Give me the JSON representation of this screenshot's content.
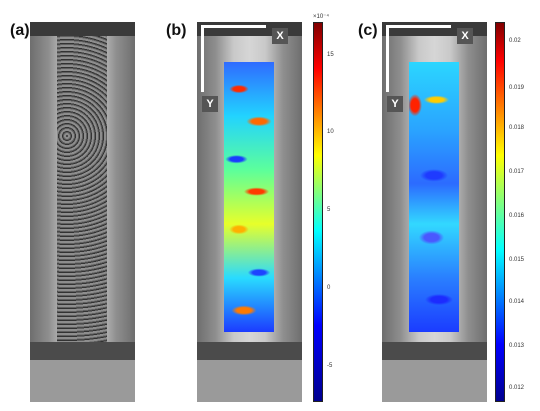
{
  "panels": [
    {
      "label": "(a)"
    },
    {
      "label": "(b)",
      "axis_x": "X",
      "axis_y": "Y"
    },
    {
      "label": "(c)",
      "axis_x": "X",
      "axis_y": "Y"
    }
  ],
  "colorbars": [
    {
      "exponent": "×10⁻⁴",
      "ticks": [
        "15",
        "10",
        "5",
        "0",
        "-5"
      ]
    },
    {
      "ticks": [
        "0.02",
        "0.019",
        "0.018",
        "0.017",
        "0.016",
        "0.015",
        "0.014",
        "0.013",
        "0.012"
      ]
    }
  ],
  "colors": {
    "jet": [
      "#00008f",
      "#0000ff",
      "#00ffff",
      "#ffff00",
      "#ff0000",
      "#800000"
    ]
  }
}
